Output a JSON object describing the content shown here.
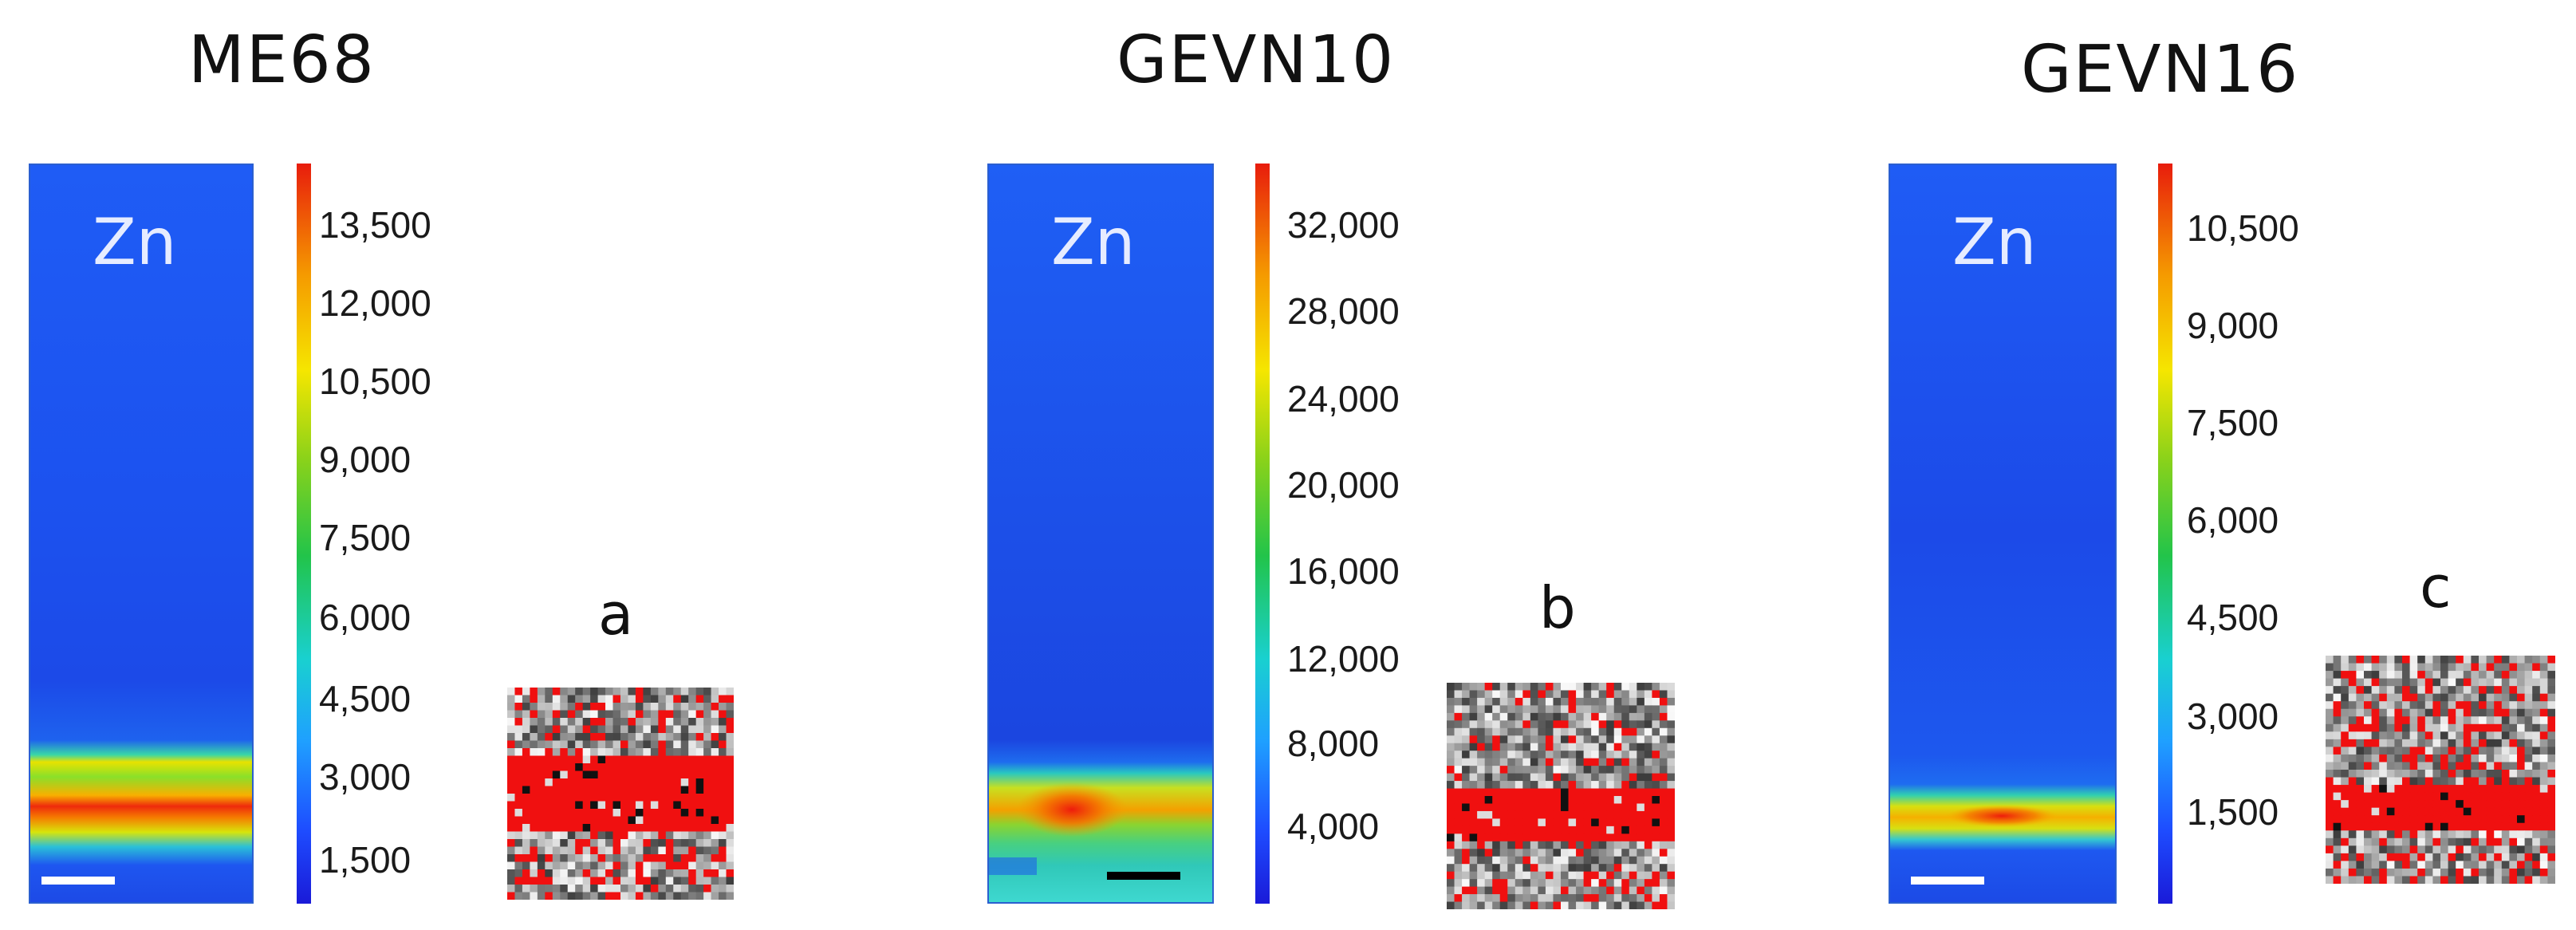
{
  "panels": [
    {
      "id": "me68",
      "title": "ME68",
      "element_label": "Zn",
      "letter": "a",
      "colorbar_ticks": [
        "13,500",
        "12,000",
        "10,500",
        "9,000",
        "7,500",
        "6,000",
        "4,500",
        "3,000",
        "1,500"
      ],
      "scalebar_color": "#ffffff"
    },
    {
      "id": "gevn10",
      "title": "GEVN10",
      "element_label": "Zn",
      "letter": "b",
      "colorbar_ticks": [
        "32,000",
        "28,000",
        "24,000",
        "20,000",
        "16,000",
        "12,000",
        "8,000",
        "4,000"
      ],
      "scalebar_color": "#000000"
    },
    {
      "id": "gevn16",
      "title": "GEVN16",
      "element_label": "Zn",
      "letter": "c",
      "colorbar_ticks": [
        "10,500",
        "9,000",
        "7,500",
        "6,000",
        "4,500",
        "3,000",
        "1,500"
      ],
      "scalebar_color": "#ffffff"
    }
  ]
}
